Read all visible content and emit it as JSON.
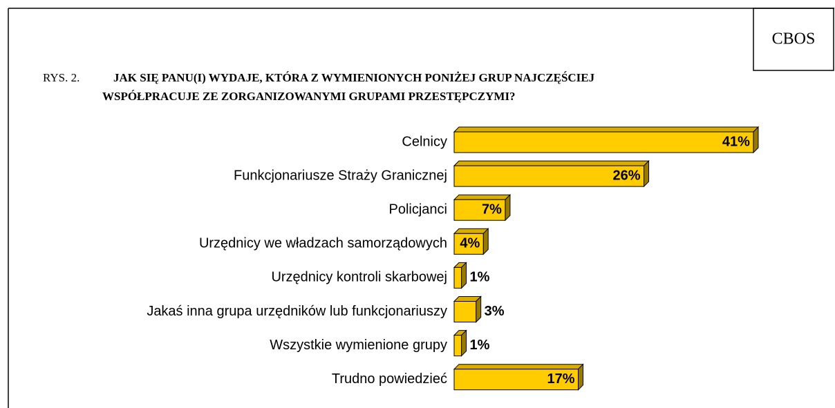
{
  "source": "CBOS",
  "chart_data": {
    "type": "bar",
    "figure_label": "RYS. 2.",
    "title": [
      "JAK SIĘ PANU(I) WYDAJE, KTÓRA Z WYMIENIONYCH PONIŻEJ GRUP NAJCZĘŚCIEJ",
      "WSPÓŁPRACUJE ZE ZORGANIZOWANYMI GRUPAMI PRZESTĘPCZYMI?"
    ],
    "categories": [
      "Celnicy",
      "Funkcjonariusze Straży Granicznej",
      "Policjanci",
      "Urzędnicy we władzach samorządowych",
      "Urzędnicy kontroli skarbowej",
      "Jakaś inna grupa urzędników lub funkcjonariuszy",
      "Wszystkie wymienione grupy",
      "Trudno powiedzieć"
    ],
    "values": [
      41,
      26,
      7,
      4,
      1,
      3,
      1,
      17
    ],
    "value_labels": [
      "41%",
      "26%",
      "7%",
      "4%",
      "1%",
      "3%",
      "1%",
      "17%"
    ],
    "color": "#ffcc00"
  }
}
